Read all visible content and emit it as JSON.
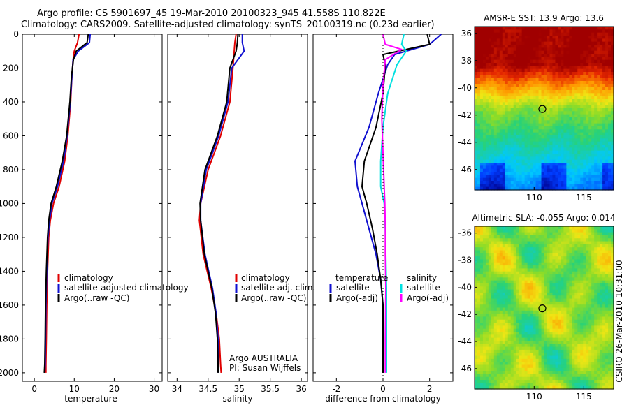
{
  "title": {
    "line1": "Argo profile: CS 5901697_45 19-Mar-2010 20100323_945 41.558S 110.822E",
    "line2": "Climatology: CARS2009. Satellite-adjusted climatology: synTS_20100319.nc (0.23d earlier)"
  },
  "colors": {
    "climatology": "#e00000",
    "satellite": "#1010d0",
    "argo": "#000000",
    "salinity_satellite": "#00e0e0",
    "salinity_argo": "#ff00ff"
  },
  "depth_axis": {
    "ticks": [
      "0",
      "200",
      "400",
      "600",
      "800",
      "1000",
      "1200",
      "1400",
      "1600",
      "1800",
      "2000"
    ],
    "lim": [
      0,
      2050
    ]
  },
  "panels": {
    "temperature": {
      "xlabel": "temperature",
      "xticks": [
        "0",
        "10",
        "20",
        "30"
      ],
      "xlim": [
        -3,
        32
      ],
      "legend": [
        "climatology",
        "satellite-adjusted climatology",
        "Argo(..raw -QC)"
      ]
    },
    "salinity": {
      "xlabel": "salinity",
      "xticks": [
        "34",
        "34.5",
        "35",
        "35.5",
        "36"
      ],
      "xlim": [
        33.85,
        36.1
      ],
      "legend": [
        "climatology",
        "satellite adj. clim.",
        "Argo(..raw -QC)"
      ],
      "note_line1": "Argo AUSTRALIA",
      "note_line2": "PI: Susan Wijffels"
    },
    "difference": {
      "xlabel": "difference from climatology",
      "xticks": [
        "-2",
        "0",
        "2"
      ],
      "xlim": [
        -3,
        3
      ],
      "legend_left": {
        "title": "temperature",
        "items": [
          "satellite",
          "Argo(-adj)"
        ]
      },
      "legend_right": {
        "title": "salinity",
        "items": [
          "satellite",
          "Argo(-adj)"
        ]
      }
    }
  },
  "maps": {
    "sst": {
      "title": "AMSR-E SST: 13.9 Argo: 13.6",
      "yticks": [
        "-36",
        "-38",
        "-40",
        "-42",
        "-44",
        "-46"
      ],
      "xticks": [
        "110",
        "115"
      ]
    },
    "sla": {
      "title": "Altimetric SLA: -0.055 Argo: 0.014",
      "yticks": [
        "-36",
        "-38",
        "-40",
        "-42",
        "-44",
        "-46"
      ],
      "xticks": [
        "110",
        "115"
      ]
    }
  },
  "credit": "CSIRO 26-Mar-2010 10:31:00",
  "chart_data": [
    {
      "type": "line",
      "title": "",
      "xlabel": "temperature",
      "ylabel": "",
      "xlim": [
        -3,
        32
      ],
      "ylim": [
        2050,
        0
      ],
      "series": [
        {
          "name": "climatology",
          "x": [
            11.2,
            10.8,
            10.0,
            9.7,
            9.4,
            9.1,
            8.4,
            7.6,
            6.2,
            4.8,
            4.0,
            3.6,
            3.3,
            3.1,
            3.0,
            2.9,
            2.9
          ],
          "y": [
            0,
            50,
            100,
            150,
            250,
            400,
            600,
            750,
            900,
            1000,
            1100,
            1200,
            1400,
            1600,
            1800,
            1950,
            2000
          ]
        },
        {
          "name": "satellite-adjusted climatology",
          "x": [
            14.0,
            13.8,
            11.0,
            9.7,
            9.4,
            9.0,
            8.2,
            7.3,
            5.8,
            4.4,
            3.8,
            3.4,
            3.1,
            2.9,
            2.8,
            2.7,
            2.6
          ],
          "y": [
            0,
            50,
            100,
            150,
            250,
            400,
            600,
            750,
            900,
            1000,
            1100,
            1200,
            1400,
            1600,
            1800,
            1950,
            2000
          ]
        },
        {
          "name": "Argo(..raw -QC)",
          "x": [
            13.5,
            13.2,
            10.5,
            9.8,
            9.3,
            8.9,
            8.1,
            7.0,
            5.5,
            4.2,
            3.6,
            3.3,
            3.0,
            2.8,
            2.7,
            2.6,
            2.5
          ],
          "y": [
            0,
            50,
            100,
            150,
            250,
            400,
            600,
            750,
            900,
            1000,
            1100,
            1200,
            1400,
            1600,
            1800,
            1950,
            2000
          ]
        }
      ]
    },
    {
      "type": "line",
      "title": "",
      "xlabel": "salinity",
      "ylabel": "",
      "xlim": [
        33.85,
        36.1
      ],
      "ylim": [
        2050,
        0
      ],
      "series": [
        {
          "name": "climatology",
          "x": [
            34.95,
            34.93,
            34.92,
            34.9,
            34.85,
            34.7,
            34.5,
            34.38,
            34.36,
            34.42,
            34.55,
            34.63,
            34.68,
            34.7,
            34.71
          ],
          "y": [
            0,
            50,
            100,
            200,
            400,
            600,
            800,
            1000,
            1100,
            1300,
            1500,
            1650,
            1800,
            1950,
            2000
          ]
        },
        {
          "name": "satellite adj. clim.",
          "x": [
            35.05,
            35.05,
            35.08,
            34.88,
            34.82,
            34.67,
            34.47,
            34.38,
            34.38,
            34.45,
            34.57,
            34.63,
            34.66,
            34.67,
            34.67
          ],
          "y": [
            0,
            50,
            100,
            200,
            400,
            600,
            800,
            1000,
            1100,
            1300,
            1500,
            1650,
            1800,
            1950,
            2000
          ]
        },
        {
          "name": "Argo(..raw -QC)",
          "x": [
            34.98,
            34.97,
            34.95,
            34.85,
            34.8,
            34.65,
            34.45,
            34.37,
            34.38,
            34.44,
            34.56,
            34.62,
            34.65,
            34.66,
            34.66
          ],
          "y": [
            0,
            50,
            100,
            200,
            400,
            600,
            800,
            1000,
            1100,
            1300,
            1500,
            1650,
            1800,
            1950,
            2000
          ]
        }
      ]
    },
    {
      "type": "line",
      "title": "",
      "xlabel": "difference from climatology",
      "ylabel": "",
      "xlim": [
        -3,
        3
      ],
      "ylim": [
        2050,
        0
      ],
      "series": [
        {
          "name": "temperature satellite",
          "x": [
            2.5,
            2.0,
            0.5,
            0.2,
            -0.2,
            -0.6,
            -1.2,
            -1.1,
            -0.9,
            -0.6,
            -0.3,
            -0.1,
            0,
            0,
            0
          ],
          "y": [
            0,
            60,
            120,
            180,
            350,
            550,
            750,
            900,
            1000,
            1150,
            1300,
            1450,
            1600,
            1800,
            2000
          ]
        },
        {
          "name": "temperature Argo(-adj)",
          "x": [
            1.9,
            2.0,
            0.0,
            0.1,
            0.0,
            -0.3,
            -0.8,
            -0.9,
            -0.7,
            -0.45,
            -0.25,
            -0.1,
            0,
            0,
            0
          ],
          "y": [
            0,
            60,
            120,
            180,
            350,
            550,
            750,
            900,
            1000,
            1150,
            1300,
            1450,
            1600,
            1800,
            2000
          ]
        },
        {
          "name": "salinity satellite",
          "x": [
            0.9,
            0.8,
            1.0,
            0.6,
            0.2,
            0.0,
            -0.1,
            -0.1,
            0.05,
            0.1,
            0.12,
            0.15,
            0.15,
            0.15
          ],
          "y": [
            0,
            60,
            100,
            180,
            350,
            550,
            750,
            900,
            1000,
            1150,
            1300,
            1500,
            1800,
            2000
          ]
        },
        {
          "name": "salinity Argo(-adj)",
          "x": [
            0.0,
            0.1,
            0.8,
            0.1,
            0.0,
            -0.05,
            0.0,
            0.05,
            0.08,
            0.1,
            0.1,
            0.12,
            0.1,
            0.1
          ],
          "y": [
            0,
            60,
            90,
            150,
            300,
            500,
            700,
            900,
            1000,
            1150,
            1300,
            1500,
            1800,
            2000
          ]
        }
      ]
    },
    {
      "type": "heatmap",
      "title": "AMSR-E SST: 13.9 Argo: 13.6",
      "xlim": [
        104,
        118
      ],
      "ylim": [
        -47.5,
        -35.5
      ],
      "marker": {
        "lon": 110.822,
        "lat": -41.558
      }
    },
    {
      "type": "heatmap",
      "title": "Altimetric SLA: -0.055 Argo: 0.014",
      "xlim": [
        104,
        118
      ],
      "ylim": [
        -47.5,
        -35.5
      ],
      "marker": {
        "lon": 110.822,
        "lat": -41.558
      }
    }
  ]
}
